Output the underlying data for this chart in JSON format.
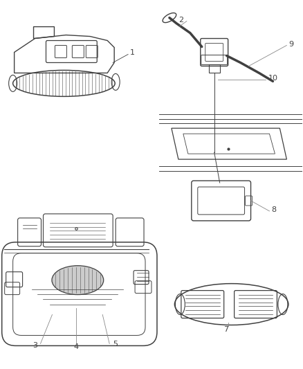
{
  "bg_color": "#ffffff",
  "line_color": "#404040",
  "label_color": "#303030",
  "fig_width": 4.38,
  "fig_height": 5.33,
  "dpi": 100
}
